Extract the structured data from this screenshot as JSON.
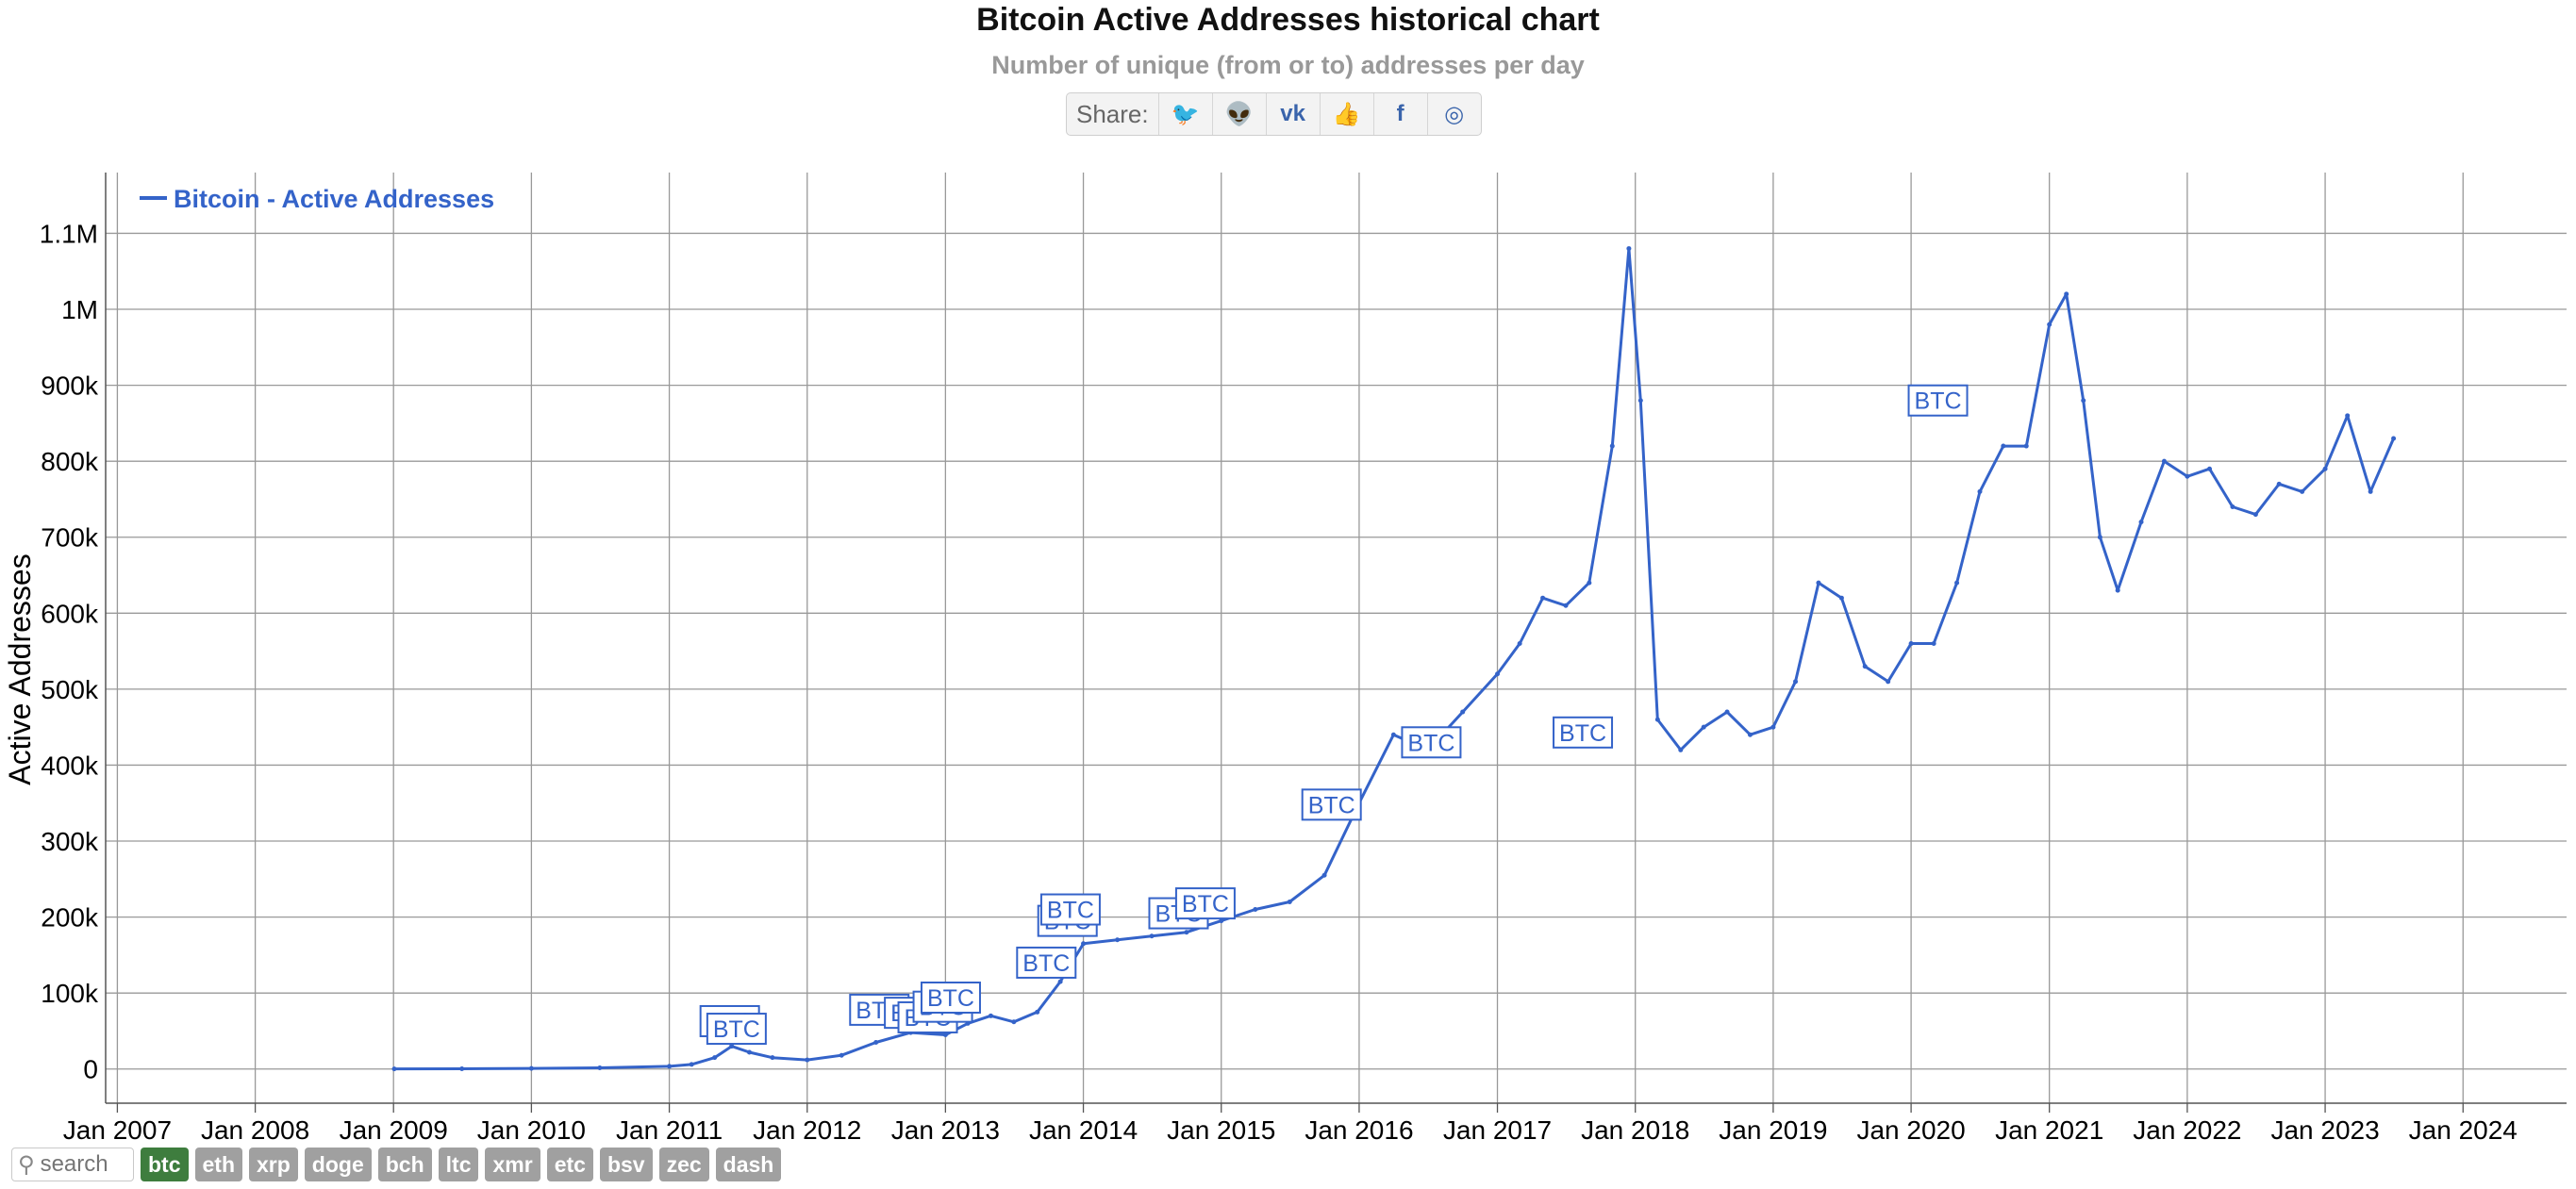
{
  "header": {
    "title": "Bitcoin Active Addresses historical chart",
    "subtitle": "Number of unique (from or to) addresses per day"
  },
  "share": {
    "label": "Share:",
    "buttons": [
      {
        "name": "twitter-icon",
        "glyph": "🐦"
      },
      {
        "name": "reddit-icon",
        "glyph": "👽"
      },
      {
        "name": "vk-icon",
        "glyph": "vk"
      },
      {
        "name": "like-icon",
        "glyph": "👍"
      },
      {
        "name": "facebook-icon",
        "glyph": "f"
      },
      {
        "name": "weibo-icon",
        "glyph": "◎"
      }
    ]
  },
  "footer": {
    "search_placeholder": "search",
    "coins": [
      "btc",
      "eth",
      "xrp",
      "doge",
      "bch",
      "ltc",
      "xmr",
      "etc",
      "bsv",
      "zec",
      "dash"
    ],
    "active": "btc"
  },
  "chart_data": {
    "type": "line",
    "title": "Bitcoin Active Addresses historical chart",
    "subtitle": "Number of unique (from or to) addresses per day",
    "ylabel": "Active Addresses",
    "xlabel": "",
    "xlim": [
      "2006-12-01",
      "2024-10-01"
    ],
    "ylim": [
      -45000,
      1180000
    ],
    "yticks": [
      0,
      100000,
      200000,
      300000,
      400000,
      500000,
      600000,
      700000,
      800000,
      900000,
      1000000,
      1100000
    ],
    "ytick_labels": [
      "0",
      "100k",
      "200k",
      "300k",
      "400k",
      "500k",
      "600k",
      "700k",
      "800k",
      "900k",
      "1M",
      "1.1M"
    ],
    "xticks": [
      "2007-01-01",
      "2008-01-01",
      "2009-01-01",
      "2010-01-01",
      "2011-01-01",
      "2012-01-01",
      "2013-01-01",
      "2014-01-01",
      "2015-01-01",
      "2016-01-01",
      "2017-01-01",
      "2018-01-01",
      "2019-01-01",
      "2020-01-01",
      "2021-01-01",
      "2022-01-01",
      "2023-01-01",
      "2024-01-01"
    ],
    "xtick_labels": [
      "Jan 2007",
      "Jan 2008",
      "Jan 2009",
      "Jan 2010",
      "Jan 2011",
      "Jan 2012",
      "Jan 2013",
      "Jan 2014",
      "Jan 2015",
      "Jan 2016",
      "Jan 2017",
      "Jan 2018",
      "Jan 2019",
      "Jan 2020",
      "Jan 2021",
      "Jan 2022",
      "Jan 2023",
      "Jan 2024"
    ],
    "grid": true,
    "legend": "top-left",
    "color": "#3463c9",
    "series": [
      {
        "name": "Bitcoin - Active Addresses",
        "x": [
          "2009-01-03",
          "2009-07-01",
          "2010-01-01",
          "2010-07-01",
          "2011-01-01",
          "2011-03-01",
          "2011-05-01",
          "2011-06-15",
          "2011-08-01",
          "2011-10-01",
          "2012-01-01",
          "2012-04-01",
          "2012-07-01",
          "2012-10-01",
          "2013-01-01",
          "2013-03-01",
          "2013-05-01",
          "2013-07-01",
          "2013-09-01",
          "2013-11-01",
          "2014-01-01",
          "2014-04-01",
          "2014-07-01",
          "2014-10-01",
          "2015-01-01",
          "2015-04-01",
          "2015-07-01",
          "2015-10-01",
          "2016-01-01",
          "2016-04-01",
          "2016-07-01",
          "2016-10-01",
          "2017-01-01",
          "2017-03-01",
          "2017-05-01",
          "2017-07-01",
          "2017-09-01",
          "2017-11-01",
          "2017-12-15",
          "2018-01-15",
          "2018-03-01",
          "2018-05-01",
          "2018-07-01",
          "2018-09-01",
          "2018-11-01",
          "2019-01-01",
          "2019-03-01",
          "2019-05-01",
          "2019-07-01",
          "2019-09-01",
          "2019-11-01",
          "2020-01-01",
          "2020-03-01",
          "2020-05-01",
          "2020-07-01",
          "2020-09-01",
          "2020-11-01",
          "2021-01-01",
          "2021-02-15",
          "2021-04-01",
          "2021-05-15",
          "2021-07-01",
          "2021-09-01",
          "2021-11-01",
          "2022-01-01",
          "2022-03-01",
          "2022-05-01",
          "2022-07-01",
          "2022-09-01",
          "2022-11-01",
          "2023-01-01",
          "2023-03-01",
          "2023-05-01",
          "2023-07-01"
        ],
        "values": [
          200,
          300,
          800,
          1500,
          3500,
          6000,
          15000,
          30000,
          22000,
          15000,
          12000,
          18000,
          35000,
          48000,
          45000,
          60000,
          70000,
          62000,
          75000,
          115000,
          165000,
          170000,
          175000,
          180000,
          195000,
          210000,
          220000,
          255000,
          350000,
          440000,
          420000,
          470000,
          520000,
          560000,
          620000,
          610000,
          640000,
          820000,
          1080000,
          880000,
          460000,
          420000,
          450000,
          470000,
          440000,
          450000,
          510000,
          640000,
          620000,
          530000,
          510000,
          560000,
          560000,
          640000,
          760000,
          820000,
          820000,
          980000,
          1020000,
          880000,
          700000,
          630000,
          720000,
          800000,
          780000,
          790000,
          740000,
          730000,
          770000,
          760000,
          790000,
          860000,
          760000,
          830000
        ]
      }
    ],
    "annotations": [
      {
        "x": "2011-06-10",
        "y": 63000,
        "text": "BTC"
      },
      {
        "x": "2011-06-28",
        "y": 53000,
        "text": "BTC"
      },
      {
        "x": "2012-07-10",
        "y": 78000,
        "text": "BTC"
      },
      {
        "x": "2012-10-10",
        "y": 74000,
        "text": "BTC"
      },
      {
        "x": "2012-11-15",
        "y": 68000,
        "text": "BTC"
      },
      {
        "x": "2012-12-25",
        "y": 82000,
        "text": "BTC"
      },
      {
        "x": "2013-01-15",
        "y": 94000,
        "text": "BTC"
      },
      {
        "x": "2013-09-25",
        "y": 140000,
        "text": "BTC"
      },
      {
        "x": "2013-11-20",
        "y": 195000,
        "text": "BTC"
      },
      {
        "x": "2013-11-28",
        "y": 210000,
        "text": "BTC"
      },
      {
        "x": "2014-09-10",
        "y": 205000,
        "text": "BTC"
      },
      {
        "x": "2014-11-20",
        "y": 218000,
        "text": "BTC"
      },
      {
        "x": "2015-10-20",
        "y": 348000,
        "text": "BTC"
      },
      {
        "x": "2016-07-10",
        "y": 430000,
        "text": "BTC"
      },
      {
        "x": "2017-08-15",
        "y": 443000,
        "text": "BTC"
      },
      {
        "x": "2020-03-12",
        "y": 880000,
        "text": "BTC"
      }
    ]
  }
}
